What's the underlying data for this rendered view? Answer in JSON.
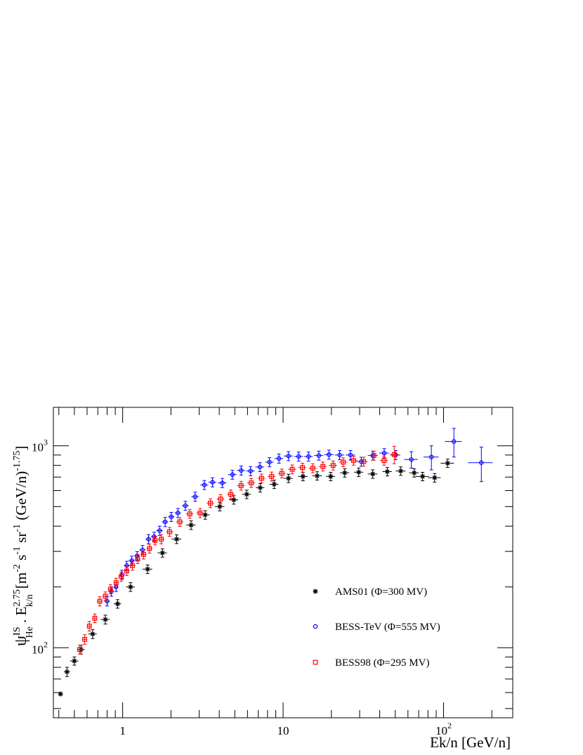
{
  "chart_data": {
    "type": "scatter",
    "title": "",
    "xlabel": "Ek/n  [GeV/n]",
    "ylabel": {
      "psi": "ψ",
      "psi_sup": "IS",
      "psi_sub": "He",
      "dot": " . E",
      "e_sup": "2.75",
      "e_sub": "k/n",
      "units": "[m",
      "u1": "-2",
      "u2": " s",
      "u3": "-1",
      "u4": " sr",
      "u5": "-1",
      "u6": " (GeV/n)",
      "u7": "-1.75",
      "u8": "]"
    },
    "xscale": "log",
    "yscale": "log",
    "xlim": [
      0.37,
      270
    ],
    "ylim": [
      45,
      1550
    ],
    "x_ticks": [
      {
        "base": "1",
        "exp": "",
        "value": 1
      },
      {
        "base": "10",
        "exp": "",
        "value": 10
      },
      {
        "base": "10",
        "exp": "2",
        "value": 100
      }
    ],
    "y_ticks": [
      {
        "base": "10",
        "exp": "2",
        "value": 100
      },
      {
        "base": "10",
        "exp": "3",
        "value": 1000
      }
    ],
    "grid": false,
    "legend_position": "lower-right",
    "series": [
      {
        "name": "AMS01 (Φ=300 MV)",
        "marker": "star",
        "color": "#000000",
        "points": [
          [
            0.41,
            59,
            0.01,
            0
          ],
          [
            0.45,
            76,
            0.02,
            4
          ],
          [
            0.5,
            86,
            0.03,
            4
          ],
          [
            0.55,
            98,
            0.03,
            5
          ],
          [
            0.65,
            117,
            0.04,
            6
          ],
          [
            0.78,
            138,
            0.05,
            7
          ],
          [
            0.93,
            165,
            0.05,
            8
          ],
          [
            1.12,
            200,
            0.07,
            10
          ],
          [
            1.43,
            245,
            0.1,
            12
          ],
          [
            1.77,
            295,
            0.12,
            14
          ],
          [
            2.17,
            345,
            0.15,
            17
          ],
          [
            2.67,
            405,
            0.18,
            20
          ],
          [
            3.27,
            455,
            0.22,
            22
          ],
          [
            4.03,
            500,
            0.28,
            24
          ],
          [
            4.93,
            540,
            0.32,
            26
          ],
          [
            5.93,
            575,
            0.38,
            28
          ],
          [
            7.2,
            620,
            0.45,
            30
          ],
          [
            8.8,
            645,
            0.55,
            31
          ],
          [
            10.8,
            690,
            0.7,
            33
          ],
          [
            13.3,
            705,
            0.9,
            34
          ],
          [
            16.3,
            710,
            1.1,
            34
          ],
          [
            19.8,
            705,
            1.3,
            34
          ],
          [
            24.2,
            735,
            1.6,
            35
          ],
          [
            29.6,
            740,
            2,
            36
          ],
          [
            36.2,
            725,
            2.5,
            35
          ],
          [
            44.6,
            745,
            3,
            36
          ],
          [
            54.1,
            750,
            3.8,
            36
          ],
          [
            65.6,
            735,
            4.5,
            35
          ],
          [
            74,
            705,
            7,
            34
          ],
          [
            88,
            695,
            8,
            34
          ],
          [
            106,
            820,
            10,
            39
          ]
        ]
      },
      {
        "name": "BESS-TeV (Φ=555 MV)",
        "marker": "open-circle",
        "color": "#0000ff",
        "points": [
          [
            0.8,
            170,
            0.03,
            9
          ],
          [
            0.85,
            190,
            0.03,
            10
          ],
          [
            0.91,
            200,
            0.03,
            10
          ],
          [
            0.99,
            230,
            0.04,
            12
          ],
          [
            1.06,
            255,
            0.04,
            13
          ],
          [
            1.14,
            270,
            0.05,
            14
          ],
          [
            1.23,
            285,
            0.05,
            14
          ],
          [
            1.33,
            305,
            0.06,
            16
          ],
          [
            1.45,
            345,
            0.06,
            18
          ],
          [
            1.57,
            355,
            0.07,
            18
          ],
          [
            1.7,
            380,
            0.08,
            20
          ],
          [
            1.84,
            420,
            0.08,
            22
          ],
          [
            2.01,
            445,
            0.09,
            23
          ],
          [
            2.21,
            465,
            0.1,
            24
          ],
          [
            2.46,
            505,
            0.12,
            26
          ],
          [
            2.83,
            560,
            0.15,
            29
          ],
          [
            3.23,
            640,
            0.18,
            33
          ],
          [
            3.63,
            660,
            0.2,
            34
          ],
          [
            4.18,
            655,
            0.25,
            34
          ],
          [
            4.83,
            720,
            0.3,
            37
          ],
          [
            5.48,
            755,
            0.32,
            39
          ],
          [
            6.27,
            750,
            0.38,
            39
          ],
          [
            7.17,
            785,
            0.45,
            40
          ],
          [
            8.22,
            830,
            0.5,
            43
          ],
          [
            9.42,
            865,
            0.6,
            45
          ],
          [
            10.8,
            890,
            0.7,
            46
          ],
          [
            12.5,
            885,
            0.8,
            46
          ],
          [
            14.4,
            885,
            0.9,
            46
          ],
          [
            16.7,
            895,
            1.1,
            46
          ],
          [
            19.3,
            905,
            1.3,
            47
          ],
          [
            22.5,
            900,
            1.5,
            47
          ],
          [
            26.3,
            900,
            1.8,
            47
          ],
          [
            30.7,
            835,
            2,
            43
          ],
          [
            36.2,
            895,
            2.5,
            46
          ],
          [
            42.7,
            920,
            3,
            48
          ],
          [
            50.3,
            900,
            3.5,
            47
          ],
          [
            63,
            855,
            6,
            80
          ],
          [
            84,
            880,
            9,
            120
          ],
          [
            116,
            1050,
            14,
            170
          ],
          [
            172,
            825,
            30,
            160
          ]
        ]
      },
      {
        "name": "BESS98 (Φ=295 MV)",
        "marker": "open-square",
        "color": "#ff0000",
        "points": [
          [
            0.54,
            98,
            0.02,
            5
          ],
          [
            0.58,
            110,
            0.02,
            6
          ],
          [
            0.62,
            128,
            0.02,
            7
          ],
          [
            0.67,
            140,
            0.02,
            7
          ],
          [
            0.72,
            170,
            0.03,
            9
          ],
          [
            0.78,
            180,
            0.03,
            9
          ],
          [
            0.84,
            195,
            0.03,
            10
          ],
          [
            0.91,
            210,
            0.03,
            11
          ],
          [
            0.98,
            225,
            0.04,
            12
          ],
          [
            1.06,
            240,
            0.04,
            12
          ],
          [
            1.15,
            255,
            0.05,
            13
          ],
          [
            1.24,
            275,
            0.05,
            14
          ],
          [
            1.35,
            290,
            0.06,
            15
          ],
          [
            1.47,
            310,
            0.06,
            16
          ],
          [
            1.59,
            340,
            0.07,
            17
          ],
          [
            1.74,
            345,
            0.08,
            18
          ],
          [
            1.96,
            375,
            0.1,
            19
          ],
          [
            2.27,
            420,
            0.12,
            21
          ],
          [
            2.62,
            460,
            0.14,
            23
          ],
          [
            3.04,
            465,
            0.16,
            24
          ],
          [
            3.52,
            520,
            0.18,
            26
          ],
          [
            4.08,
            545,
            0.22,
            28
          ],
          [
            4.72,
            575,
            0.25,
            29
          ],
          [
            5.47,
            635,
            0.3,
            32
          ],
          [
            6.33,
            655,
            0.35,
            33
          ],
          [
            7.33,
            690,
            0.4,
            35
          ],
          [
            8.48,
            705,
            0.45,
            36
          ],
          [
            9.82,
            730,
            0.55,
            37
          ],
          [
            11.4,
            765,
            0.65,
            39
          ],
          [
            13.2,
            780,
            0.75,
            40
          ],
          [
            15.3,
            775,
            0.85,
            40
          ],
          [
            17.7,
            790,
            1,
            40
          ],
          [
            20.5,
            800,
            1.2,
            41
          ],
          [
            23.7,
            830,
            1.4,
            42
          ],
          [
            27.5,
            845,
            1.6,
            43
          ],
          [
            31.8,
            835,
            1.9,
            43
          ],
          [
            36.8,
            895,
            2.2,
            46
          ],
          [
            42.6,
            845,
            2.6,
            43
          ],
          [
            49.3,
            905,
            3,
            90
          ]
        ]
      }
    ]
  }
}
